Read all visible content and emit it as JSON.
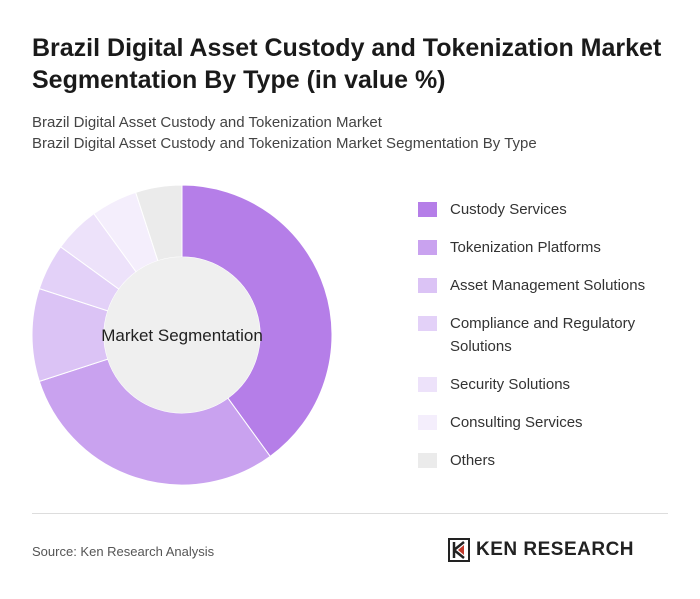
{
  "chart_data": {
    "type": "donut",
    "title": "Brazil Digital Asset Custody and Tokenization Market Segmentation By Type (in value %)",
    "subtitle": "Brazil Digital Asset Custody and Tokenization Market",
    "subtitle2": "Brazil Digital Asset Custody and Tokenization Market Segmentation By Type",
    "center_label": "Market Segmentation",
    "categories": [
      "Custody Services",
      "Tokenization Platforms",
      "Asset Management Solutions",
      "Compliance and Regulatory Solutions",
      "Security Solutions",
      "Consulting Services",
      "Others"
    ],
    "values": [
      40,
      30,
      10,
      5,
      5,
      5,
      5
    ],
    "colors": [
      "#b57ee8",
      "#c9a2ef",
      "#dbc3f5",
      "#e3d1f8",
      "#ede2fa",
      "#f4eefc",
      "#ebebeb"
    ]
  },
  "source": "Source: Ken Research Analysis",
  "logo": "KEN RESEARCH"
}
